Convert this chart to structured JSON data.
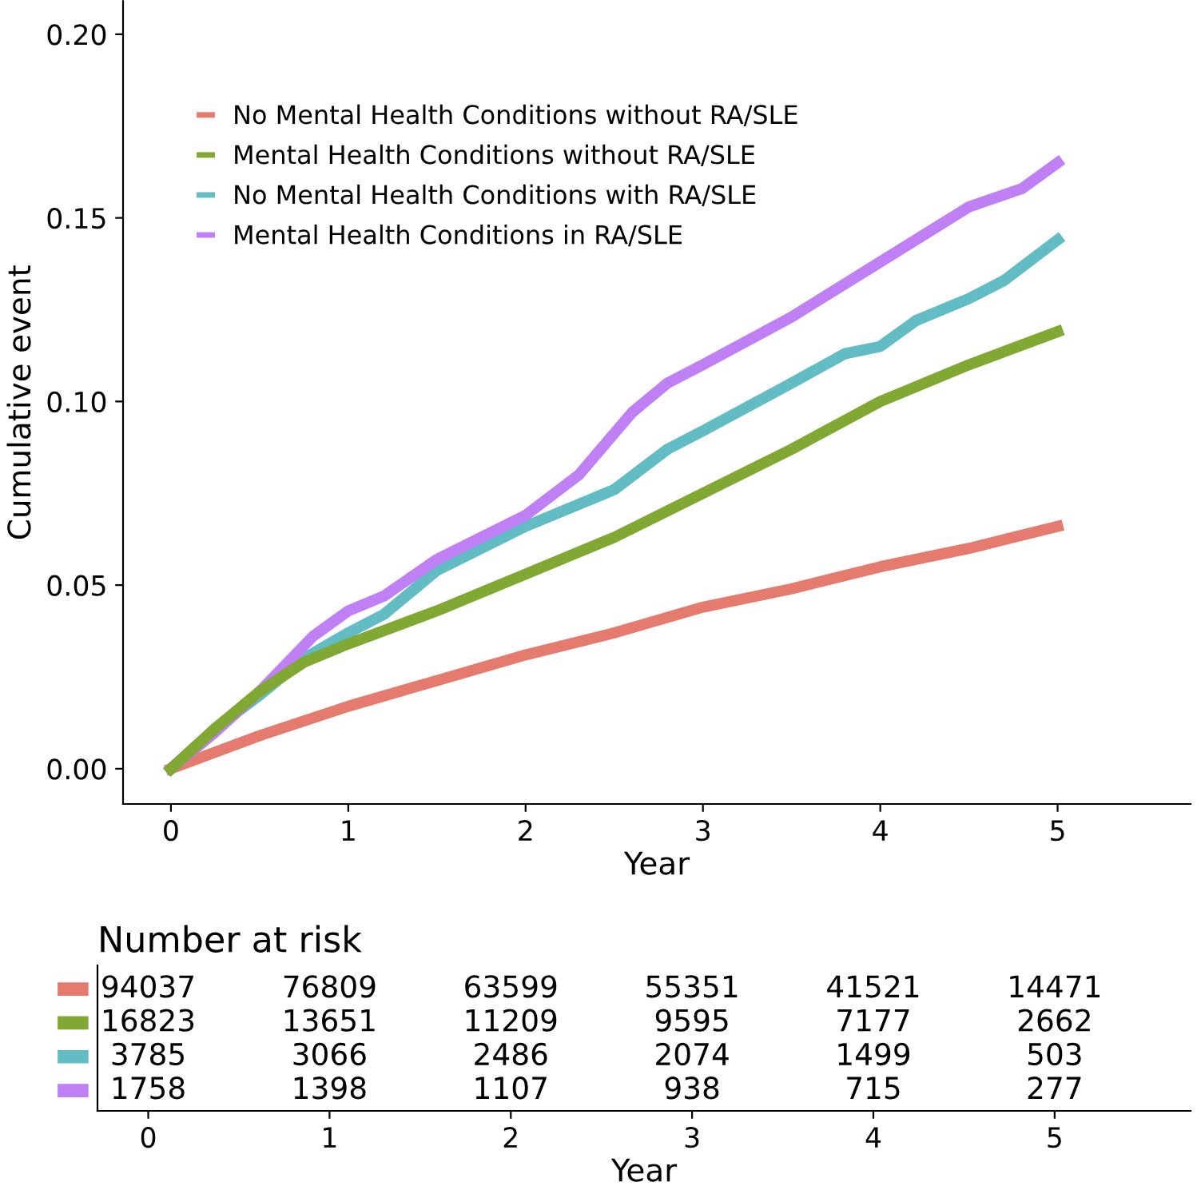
{
  "chart_data": [
    {
      "type": "line",
      "ylabel": "Cumulative event",
      "xlabel": "Year",
      "xlim": [
        -0.27,
        5.75
      ],
      "xticks": [
        0,
        1,
        2,
        3,
        4,
        5
      ],
      "ylim": [
        -0.0096,
        0.209
      ],
      "yticks": [
        {
          "value": 0,
          "label": "0.00"
        },
        {
          "value": 0.05,
          "label": "0.05"
        },
        {
          "value": 0.1,
          "label": "0.10"
        },
        {
          "value": 0.15,
          "label": "0.15"
        },
        {
          "value": 0.2,
          "label": "0.20"
        }
      ],
      "grid": false,
      "legend": "top left",
      "marker": "none",
      "line_style": "solid",
      "series": [
        {
          "name": "No Mental Health Conditions without RA/SLE",
          "color": "#e47b6e",
          "x": [
            0,
            0.5,
            1,
            1.5,
            2,
            2.5,
            3,
            3.5,
            4,
            4.5,
            5
          ],
          "values": [
            0,
            0.009,
            0.017,
            0.024,
            0.031,
            0.037,
            0.044,
            0.049,
            0.055,
            0.06,
            0.066
          ]
        },
        {
          "name": "Mental Health Conditions without RA/SLE",
          "color": "#80a833",
          "x": [
            0,
            0.25,
            0.5,
            0.75,
            1,
            1.5,
            2,
            2.5,
            3,
            3.5,
            4,
            4.5,
            5
          ],
          "values": [
            0,
            0.011,
            0.021,
            0.029,
            0.034,
            0.043,
            0.053,
            0.063,
            0.075,
            0.087,
            0.1,
            0.11,
            0.119
          ]
        },
        {
          "name": "No Mental Health Conditions with RA/SLE",
          "color": "#62bcc4",
          "x": [
            0,
            0.25,
            0.5,
            0.75,
            1,
            1.2,
            1.5,
            2,
            2.5,
            2.8,
            3,
            3.5,
            3.8,
            4,
            4.2,
            4.5,
            4.7,
            5
          ],
          "values": [
            0,
            0.011,
            0.02,
            0.03,
            0.037,
            0.042,
            0.054,
            0.066,
            0.076,
            0.087,
            0.092,
            0.105,
            0.113,
            0.115,
            0.122,
            0.128,
            0.133,
            0.144
          ]
        },
        {
          "name": "Mental Health Conditions in RA/SLE",
          "color": "#bf7ff5",
          "x": [
            0,
            0.25,
            0.5,
            0.8,
            1,
            1.2,
            1.5,
            2,
            2.3,
            2.6,
            2.8,
            3,
            3.5,
            4,
            4.5,
            4.8,
            5
          ],
          "values": [
            0,
            0.01,
            0.021,
            0.036,
            0.043,
            0.047,
            0.057,
            0.069,
            0.08,
            0.097,
            0.105,
            0.11,
            0.123,
            0.138,
            0.153,
            0.158,
            0.165
          ]
        }
      ]
    },
    {
      "type": "heatmap",
      "title": "Number at risk",
      "xlabel": "Year",
      "categories": [
        "0",
        "1",
        "2",
        "3",
        "4",
        "5"
      ],
      "y_categories": [
        null,
        null,
        null,
        null
      ],
      "colors": [
        "#e47b6e",
        "#80a833",
        "#62bcc4",
        "#bf7ff5"
      ],
      "data_labels": true,
      "cells": [
        [
          94037,
          76809,
          63599,
          55351,
          41521,
          14471
        ],
        [
          16823,
          13651,
          11209,
          9595,
          7177,
          2662
        ],
        [
          3785,
          3066,
          2486,
          2074,
          1499,
          503
        ],
        [
          1758,
          1398,
          1107,
          938,
          715,
          277
        ]
      ]
    }
  ]
}
